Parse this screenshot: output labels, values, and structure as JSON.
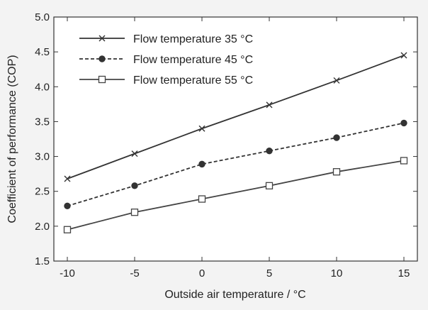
{
  "chart_data": {
    "type": "line",
    "xlabel": "Outside air temperature / °C",
    "ylabel": "Coefficient of performance (COP)",
    "xlim": [
      -11,
      16
    ],
    "ylim": [
      1.5,
      5.0
    ],
    "x_ticks": [
      -10,
      -5,
      0,
      5,
      10,
      15
    ],
    "y_ticks": [
      1.5,
      2.0,
      2.5,
      3.0,
      3.5,
      4.0,
      4.5,
      5.0
    ],
    "x_tick_labels": [
      "-10",
      "-5",
      "0",
      "5",
      "10",
      "15"
    ],
    "y_tick_labels": [
      "1.5",
      "2.0",
      "2.5",
      "3.0",
      "3.5",
      "4.0",
      "4.5",
      "5.0"
    ],
    "x": [
      -10,
      -5,
      0,
      5,
      10,
      15
    ],
    "grid": false,
    "legend_position": "top-left",
    "series": [
      {
        "name": "Flow temperature 35 °C",
        "values": [
          2.68,
          3.04,
          3.4,
          3.74,
          4.09,
          4.45
        ],
        "marker": "x",
        "line": "solid",
        "color": "#333333"
      },
      {
        "name": "Flow temperature 45 °C",
        "values": [
          2.29,
          2.58,
          2.89,
          3.08,
          3.27,
          3.48
        ],
        "marker": "filled-circle",
        "line": "dashed",
        "color": "#333333"
      },
      {
        "name": "Flow temperature 55 °C",
        "values": [
          1.95,
          2.2,
          2.39,
          2.58,
          2.78,
          2.94
        ],
        "marker": "open-square",
        "line": "solid",
        "color": "#444444"
      }
    ]
  }
}
